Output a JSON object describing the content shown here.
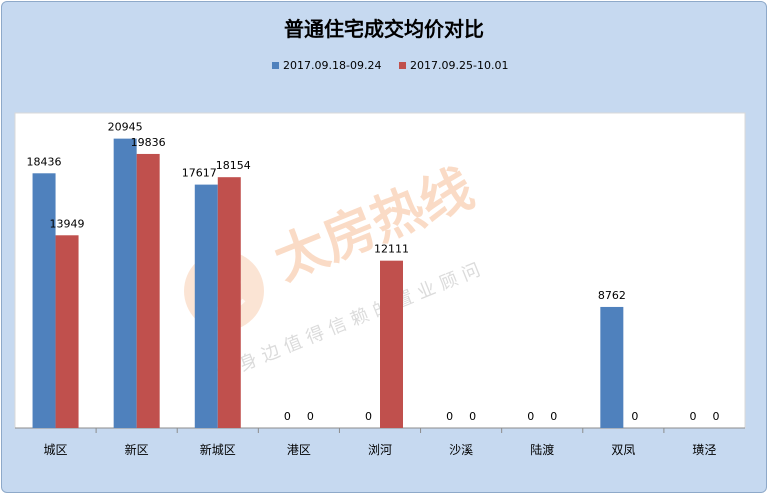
{
  "chart_data": {
    "type": "bar",
    "title": "普通住宅成交均价对比",
    "categories": [
      "城区",
      "新区",
      "新城区",
      "港区",
      "浏河",
      "沙溪",
      "陆渡",
      "双凤",
      "璜泾"
    ],
    "series": [
      {
        "name": "2017.09.18-09.24",
        "color": "#4f81bd",
        "values": [
          18436,
          20945,
          17617,
          0,
          0,
          0,
          0,
          8762,
          0
        ]
      },
      {
        "name": "2017.09.25-10.01",
        "color": "#c0504d",
        "values": [
          13949,
          19836,
          18154,
          0,
          12111,
          0,
          0,
          0,
          0
        ]
      }
    ],
    "ylim": [
      0,
      22800
    ],
    "grid": false,
    "legend_position": "top"
  },
  "watermark": {
    "main": "太房热线",
    "sub": "您身边值得信赖的置业顾问"
  }
}
